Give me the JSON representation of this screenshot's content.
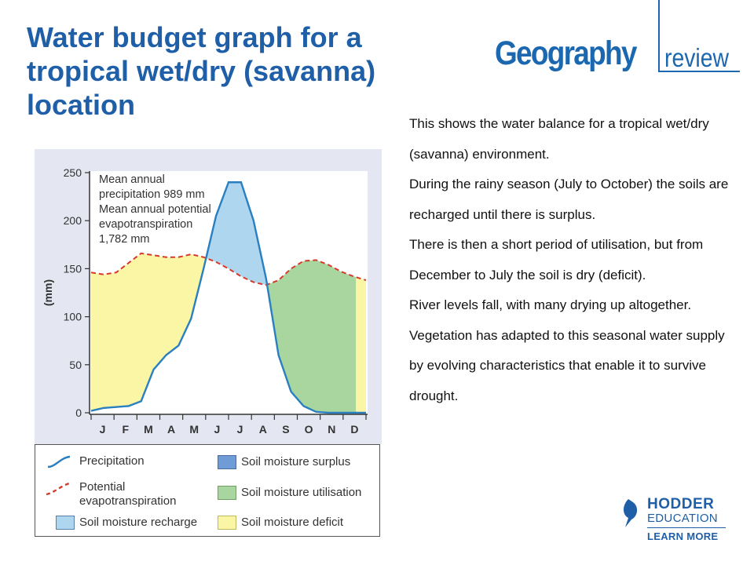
{
  "slide": {
    "title": "Water budget graph for a tropical wet/dry (savanna) location"
  },
  "logo": {
    "geography": "Geography",
    "review": "review"
  },
  "publisher": {
    "name": "HODDER",
    "sub": "EDUCATION",
    "link": "LEARN MORE"
  },
  "body_lines": [
    "This shows the water balance for a tropical wet/dry (savanna) environment.",
    "During the rainy season (July to October) the soils are recharged until there is surplus.",
    "There is then a short period of utilisation, but from December to July the soil is dry (deficit).",
    "River levels fall, with many drying up altogether.",
    "Vegetation has adapted to this seasonal water supply by evolving characteristics that enable it to survive drought."
  ],
  "colors": {
    "title": "#1f5fa8",
    "plot_bg": "#e4e6f1",
    "precip_line": "#2a7fc1",
    "pet_line": "#d63a2b",
    "recharge": "#aed6ef",
    "surplus": "#6f9bd6",
    "utilisation": "#a8d69e",
    "deficit": "#fbf6a6"
  },
  "chart_data": {
    "type": "area",
    "title": "",
    "ylabel": "(mm)",
    "xlabel": "",
    "ylim": [
      0,
      250
    ],
    "yticks": [
      0,
      50,
      100,
      150,
      200,
      250
    ],
    "x": [
      0,
      0.5,
      1,
      1.5,
      2,
      2.5,
      3,
      3.5,
      4,
      4.5,
      5,
      5.5,
      6,
      6.5,
      7,
      7.5,
      8,
      8.5,
      9,
      9.5,
      10,
      10.5,
      11
    ],
    "categories": [
      "J",
      "F",
      "M",
      "A",
      "M",
      "J",
      "J",
      "A",
      "S",
      "O",
      "N",
      "D"
    ],
    "series": [
      {
        "name": "Precipitation",
        "values": [
          2,
          5,
          6,
          7,
          12,
          45,
          60,
          70,
          98,
          150,
          205,
          240,
          240,
          200,
          140,
          60,
          22,
          7,
          1,
          0,
          0,
          0,
          0
        ]
      },
      {
        "name": "Potential evapotranspiration",
        "values": [
          146,
          144,
          146,
          156,
          166,
          164,
          162,
          162,
          165,
          162,
          157,
          150,
          142,
          136,
          133,
          138,
          150,
          158,
          159,
          154,
          147,
          142,
          138
        ]
      }
    ],
    "annotations": [
      "Mean annual",
      "precipitation 989 mm",
      "Mean annual potential",
      "evapotranspiration",
      "1,782 mm"
    ],
    "legend": [
      {
        "label": "Precipitation",
        "kind": "line",
        "color": "#2a7fc1"
      },
      {
        "label": "Potential evapotranspiration",
        "kind": "dashed",
        "color": "#d63a2b"
      },
      {
        "label": "Soil moisture recharge",
        "kind": "fill",
        "color": "#aed6ef"
      },
      {
        "label": "Soil moisture surplus",
        "kind": "fill",
        "color": "#6f9bd6"
      },
      {
        "label": "Soil moisture utilisation",
        "kind": "fill",
        "color": "#a8d69e"
      },
      {
        "label": "Soil moisture deficit",
        "kind": "fill",
        "color": "#fbf6a6"
      }
    ],
    "legend_labels": {
      "precip": "Precipitation",
      "pet_1": "Potential",
      "pet_2": "evapotranspiration",
      "recharge": "Soil moisture recharge",
      "surplus": "Soil moisture surplus",
      "utilisation": "Soil moisture utilisation",
      "deficit": "Soil moisture deficit"
    }
  }
}
